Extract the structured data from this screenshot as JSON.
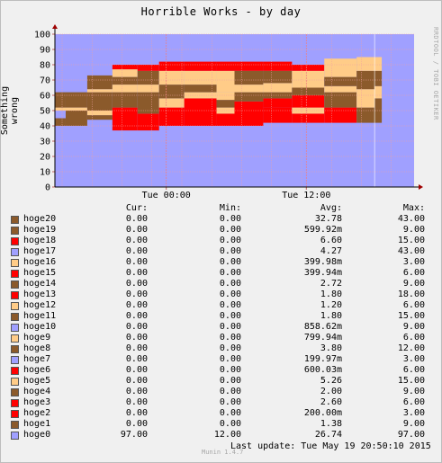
{
  "title": "Horrible Works - by day",
  "watermark": "RRDTOOL / TOBI OETIKER",
  "munin_version": "Munin 1.4.7",
  "last_update": "Last update: Tue May 19 20:50:10 2015",
  "legend_headers": [
    "Cur:",
    "Min:",
    "Avg:",
    "Max:"
  ],
  "chart_data": {
    "type": "area",
    "title": "Horrible Works - by day",
    "ylabel": "Something wrong",
    "xlabel": "",
    "ylim": [
      0,
      100
    ],
    "yticks": [
      0,
      10,
      20,
      30,
      40,
      50,
      60,
      70,
      80,
      90,
      100
    ],
    "xticks": [
      "Tue 00:00",
      "Tue 12:00"
    ],
    "grid": true,
    "background_color": "#a0a0ff",
    "series": [
      {
        "name": "hoge20",
        "color": "#8b5a2b",
        "cur": "0.00",
        "min": "0.00",
        "avg": "32.78",
        "max": "43.00"
      },
      {
        "name": "hoge19",
        "color": "#8b5a2b",
        "cur": "0.00",
        "min": "0.00",
        "avg": "599.92m",
        "max": "9.00"
      },
      {
        "name": "hoge18",
        "color": "#ff0000",
        "cur": "0.00",
        "min": "0.00",
        "avg": "6.60",
        "max": "15.00"
      },
      {
        "name": "hoge17",
        "color": "#a0a0ff",
        "cur": "0.00",
        "min": "0.00",
        "avg": "4.27",
        "max": "43.00"
      },
      {
        "name": "hoge16",
        "color": "#ffcc88",
        "cur": "0.00",
        "min": "0.00",
        "avg": "399.98m",
        "max": "3.00"
      },
      {
        "name": "hoge15",
        "color": "#ff0000",
        "cur": "0.00",
        "min": "0.00",
        "avg": "399.94m",
        "max": "6.00"
      },
      {
        "name": "hoge14",
        "color": "#8b5a2b",
        "cur": "0.00",
        "min": "0.00",
        "avg": "2.72",
        "max": "9.00"
      },
      {
        "name": "hoge13",
        "color": "#ff0000",
        "cur": "0.00",
        "min": "0.00",
        "avg": "1.80",
        "max": "18.00"
      },
      {
        "name": "hoge12",
        "color": "#ffcc88",
        "cur": "0.00",
        "min": "0.00",
        "avg": "1.20",
        "max": "6.00"
      },
      {
        "name": "hoge11",
        "color": "#8b5a2b",
        "cur": "0.00",
        "min": "0.00",
        "avg": "1.80",
        "max": "15.00"
      },
      {
        "name": "hoge10",
        "color": "#a0a0ff",
        "cur": "0.00",
        "min": "0.00",
        "avg": "858.62m",
        "max": "9.00"
      },
      {
        "name": "hoge9",
        "color": "#ffcc88",
        "cur": "0.00",
        "min": "0.00",
        "avg": "799.94m",
        "max": "6.00"
      },
      {
        "name": "hoge8",
        "color": "#8b5a2b",
        "cur": "0.00",
        "min": "0.00",
        "avg": "3.80",
        "max": "12.00"
      },
      {
        "name": "hoge7",
        "color": "#a0a0ff",
        "cur": "0.00",
        "min": "0.00",
        "avg": "199.97m",
        "max": "3.00"
      },
      {
        "name": "hoge6",
        "color": "#ff0000",
        "cur": "0.00",
        "min": "0.00",
        "avg": "600.03m",
        "max": "6.00"
      },
      {
        "name": "hoge5",
        "color": "#ffcc88",
        "cur": "0.00",
        "min": "0.00",
        "avg": "5.26",
        "max": "15.00"
      },
      {
        "name": "hoge4",
        "color": "#8b5a2b",
        "cur": "0.00",
        "min": "0.00",
        "avg": "2.00",
        "max": "9.00"
      },
      {
        "name": "hoge3",
        "color": "#ff0000",
        "cur": "0.00",
        "min": "0.00",
        "avg": "2.60",
        "max": "6.00"
      },
      {
        "name": "hoge2",
        "color": "#ff0000",
        "cur": "0.00",
        "min": "0.00",
        "avg": "200.00m",
        "max": "3.00"
      },
      {
        "name": "hoge1",
        "color": "#8b5a2b",
        "cur": "0.00",
        "min": "0.00",
        "avg": "1.38",
        "max": "9.00"
      },
      {
        "name": "hoge0",
        "color": "#a0a0ff",
        "cur": "97.00",
        "min": "12.00",
        "avg": "26.74",
        "max": "97.00"
      }
    ],
    "stack_segments": [
      {
        "x0": 0.0,
        "x1": 0.03,
        "layers": [
          [
            40,
            45,
            "#8b5a2b"
          ],
          [
            45,
            50,
            "#a0a0ff"
          ],
          [
            50,
            52,
            "#ffcc88"
          ],
          [
            52,
            62,
            "#8b5a2b"
          ]
        ]
      },
      {
        "x0": 0.03,
        "x1": 0.09,
        "layers": [
          [
            40,
            50,
            "#8b5a2b"
          ],
          [
            50,
            52,
            "#ffcc88"
          ],
          [
            52,
            62,
            "#8b5a2b"
          ]
        ]
      },
      {
        "x0": 0.09,
        "x1": 0.16,
        "layers": [
          [
            44,
            47,
            "#8b5a2b"
          ],
          [
            47,
            50,
            "#ffcc88"
          ],
          [
            50,
            62,
            "#8b5a2b"
          ],
          [
            62,
            64,
            "#ffcc88"
          ],
          [
            64,
            73,
            "#8b5a2b"
          ]
        ]
      },
      {
        "x0": 0.16,
        "x1": 0.23,
        "layers": [
          [
            37,
            52,
            "#ff0000"
          ],
          [
            52,
            62,
            "#8b5a2b"
          ],
          [
            62,
            67,
            "#ffcc88"
          ],
          [
            67,
            72,
            "#8b5a2b"
          ],
          [
            72,
            77,
            "#ffcc88"
          ],
          [
            77,
            80,
            "#ff0000"
          ]
        ]
      },
      {
        "x0": 0.23,
        "x1": 0.29,
        "layers": [
          [
            37,
            48,
            "#ff0000"
          ],
          [
            48,
            62,
            "#8b5a2b"
          ],
          [
            62,
            67,
            "#ffcc88"
          ],
          [
            67,
            76,
            "#8b5a2b"
          ],
          [
            76,
            80,
            "#ff0000"
          ]
        ]
      },
      {
        "x0": 0.29,
        "x1": 0.36,
        "layers": [
          [
            40,
            52,
            "#ff0000"
          ],
          [
            52,
            58,
            "#ffcc88"
          ],
          [
            58,
            67,
            "#8b5a2b"
          ],
          [
            67,
            76,
            "#ffcc88"
          ],
          [
            76,
            82,
            "#ff0000"
          ]
        ]
      },
      {
        "x0": 0.36,
        "x1": 0.45,
        "layers": [
          [
            40,
            58,
            "#ff0000"
          ],
          [
            58,
            62,
            "#ffcc88"
          ],
          [
            62,
            67,
            "#8b5a2b"
          ],
          [
            67,
            76,
            "#ffcc88"
          ],
          [
            76,
            82,
            "#ff0000"
          ]
        ]
      },
      {
        "x0": 0.45,
        "x1": 0.5,
        "layers": [
          [
            40,
            48,
            "#ff0000"
          ],
          [
            48,
            52,
            "#ffcc88"
          ],
          [
            52,
            57,
            "#8b5a2b"
          ],
          [
            57,
            62,
            "#ffcc88"
          ],
          [
            62,
            76,
            "#ffcc88"
          ],
          [
            76,
            82,
            "#ff0000"
          ]
        ]
      },
      {
        "x0": 0.5,
        "x1": 0.58,
        "layers": [
          [
            40,
            50,
            "#ff0000"
          ],
          [
            50,
            56,
            "#ff0000"
          ],
          [
            56,
            62,
            "#8b5a2b"
          ],
          [
            62,
            67,
            "#ffcc88"
          ],
          [
            67,
            76,
            "#8b5a2b"
          ],
          [
            76,
            82,
            "#ff0000"
          ]
        ]
      },
      {
        "x0": 0.58,
        "x1": 0.66,
        "layers": [
          [
            42,
            52,
            "#ff0000"
          ],
          [
            52,
            58,
            "#ff0000"
          ],
          [
            58,
            62,
            "#8b5a2b"
          ],
          [
            62,
            68,
            "#ffcc88"
          ],
          [
            68,
            76,
            "#8b5a2b"
          ],
          [
            76,
            80,
            "#ff0000"
          ],
          [
            80,
            82,
            "#ff0000"
          ]
        ]
      },
      {
        "x0": 0.66,
        "x1": 0.75,
        "layers": [
          [
            42,
            48,
            "#ff0000"
          ],
          [
            48,
            52,
            "#ffcc88"
          ],
          [
            52,
            60,
            "#ff0000"
          ],
          [
            60,
            65,
            "#8b5a2b"
          ],
          [
            65,
            76,
            "#ffcc88"
          ],
          [
            76,
            80,
            "#ff0000"
          ]
        ]
      },
      {
        "x0": 0.75,
        "x1": 0.84,
        "layers": [
          [
            42,
            52,
            "#ff0000"
          ],
          [
            52,
            62,
            "#8b5a2b"
          ],
          [
            62,
            66,
            "#ffcc88"
          ],
          [
            66,
            72,
            "#8b5a2b"
          ],
          [
            72,
            80,
            "#ffcc88"
          ],
          [
            80,
            84,
            "#ffcc88"
          ]
        ]
      },
      {
        "x0": 0.84,
        "x1": 0.89,
        "layers": [
          [
            42,
            52,
            "#8b5a2b"
          ],
          [
            52,
            64,
            "#ffcc88"
          ],
          [
            64,
            76,
            "#8b5a2b"
          ],
          [
            76,
            85,
            "#ffcc88"
          ]
        ]
      },
      {
        "x0": 0.89,
        "x1": 0.91,
        "layers": [
          [
            42,
            58,
            "#8b5a2b"
          ],
          [
            58,
            66,
            "#ffcc88"
          ],
          [
            66,
            76,
            "#8b5a2b"
          ],
          [
            76,
            85,
            "#ffcc88"
          ]
        ]
      }
    ]
  }
}
